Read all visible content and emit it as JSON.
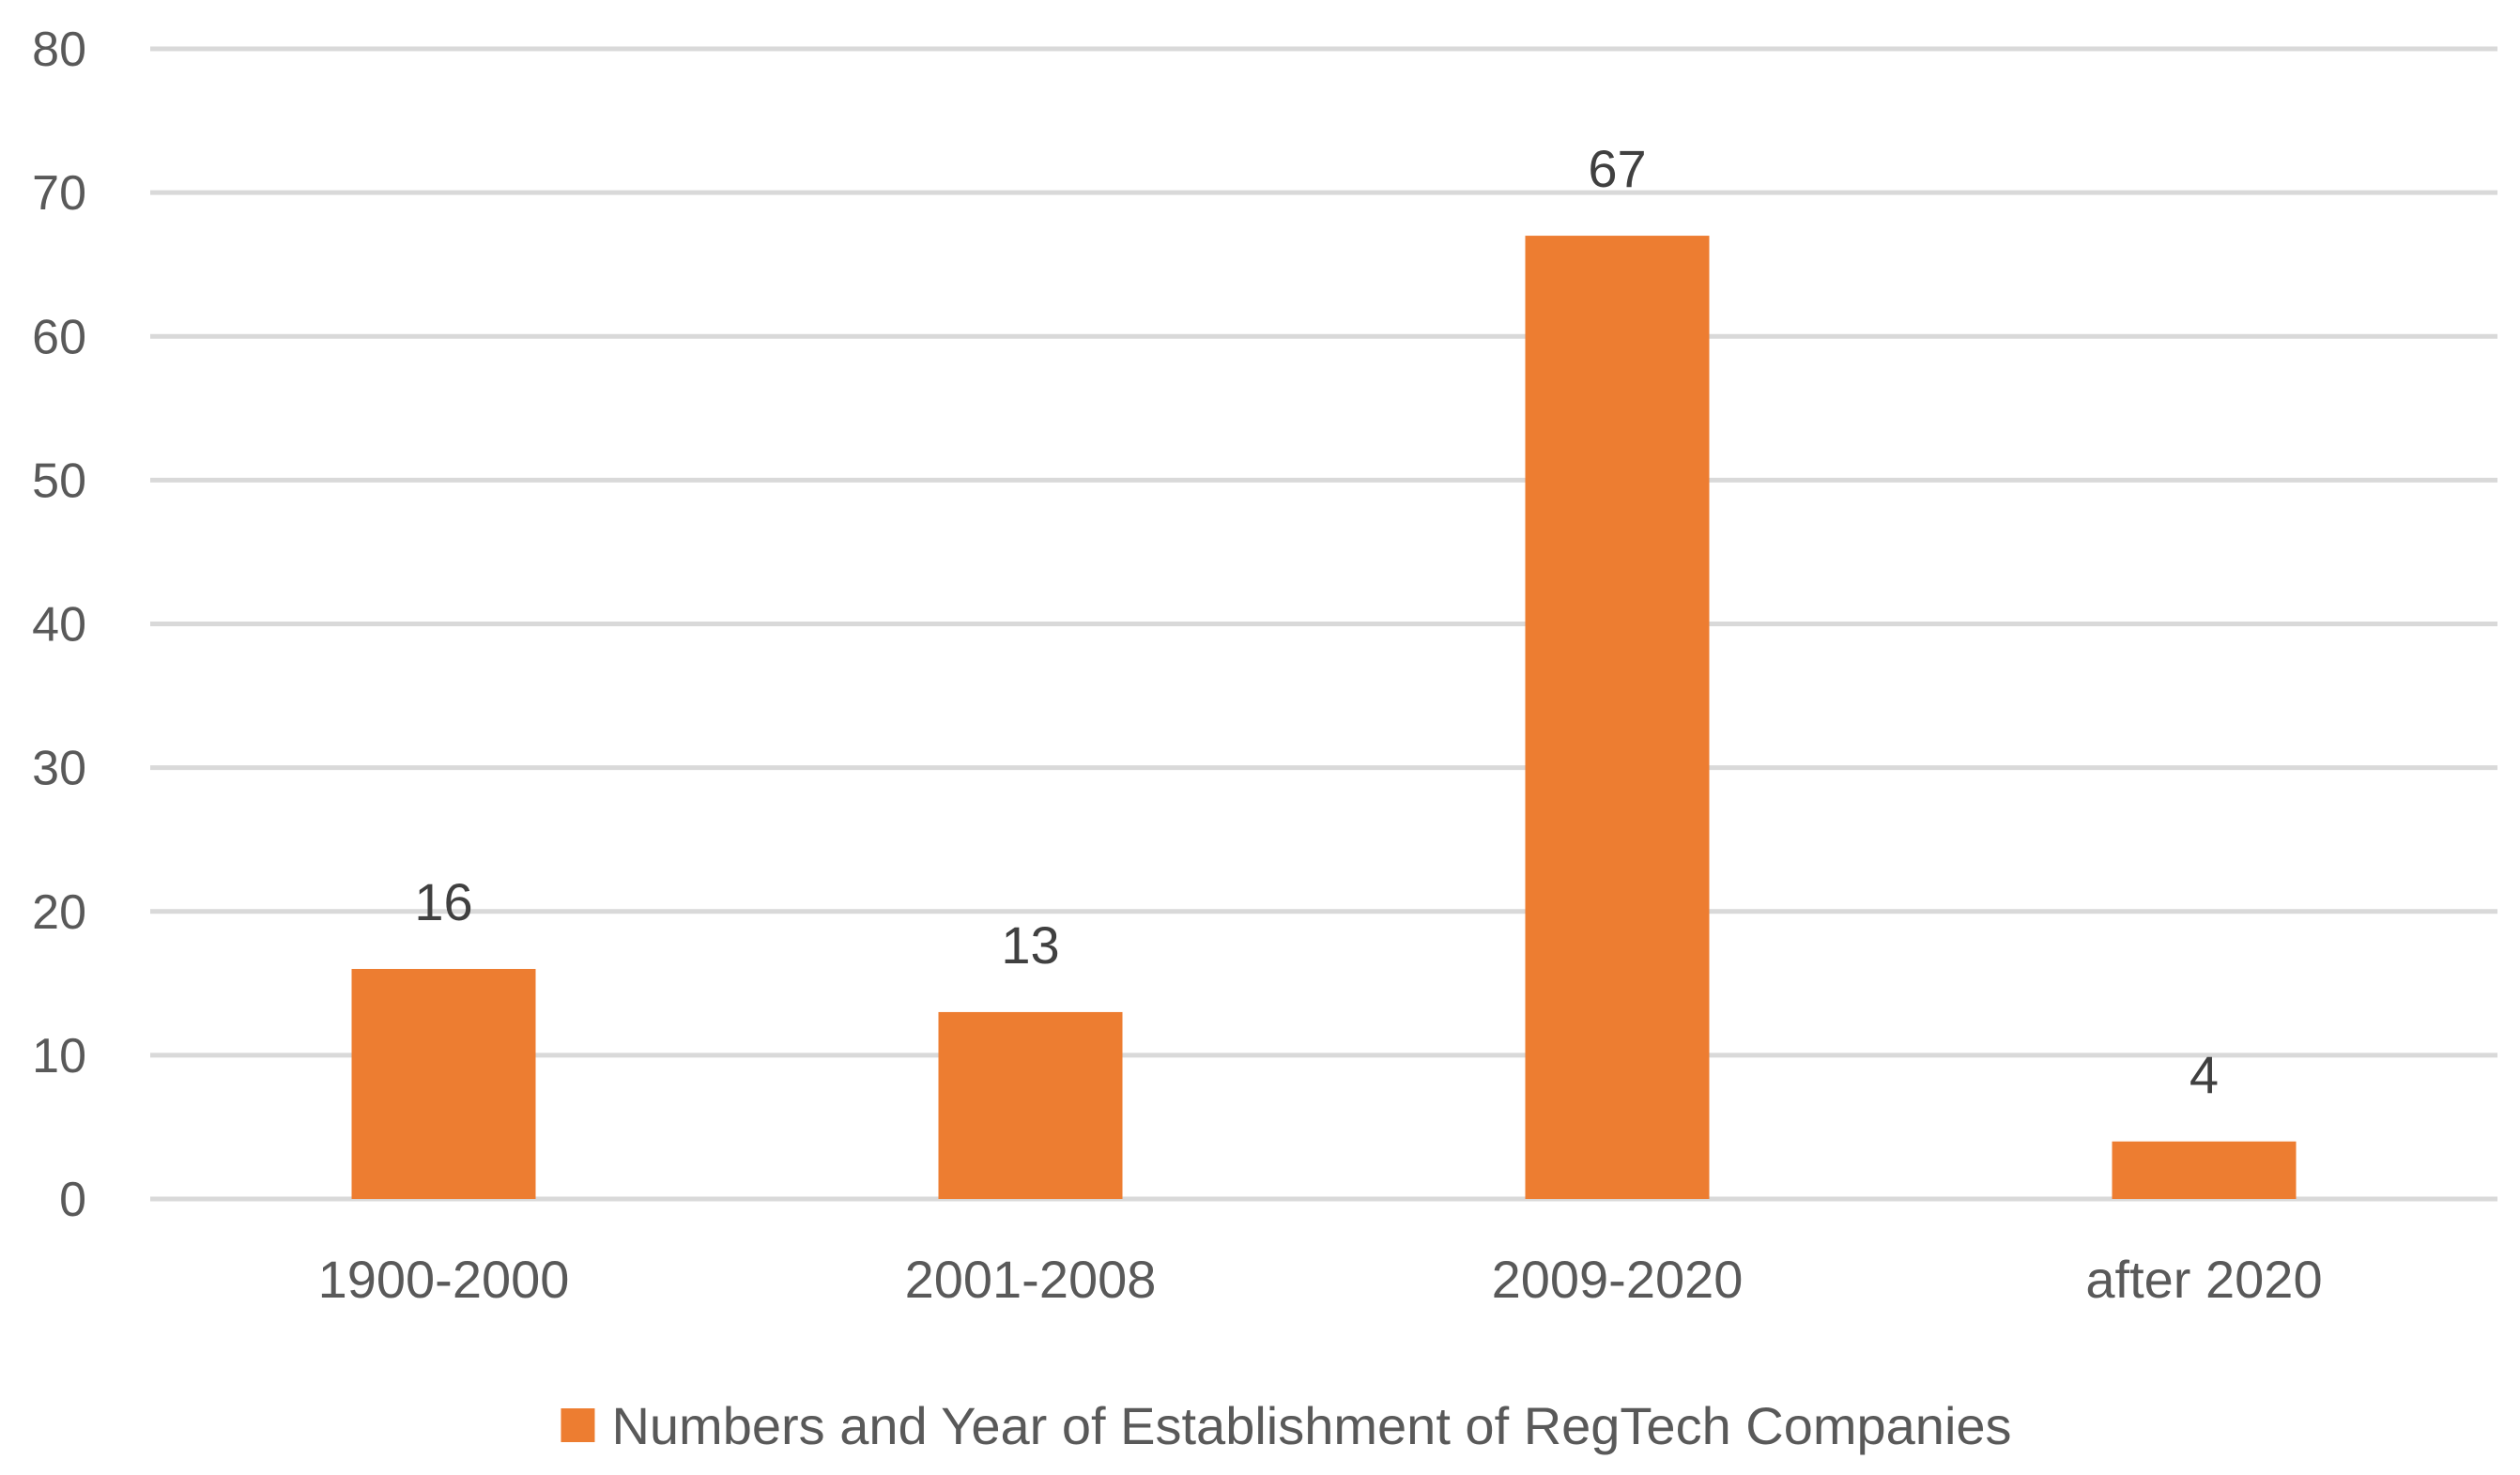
{
  "chart_data": {
    "type": "bar",
    "categories": [
      "1900-2000",
      "2001-2008",
      "2009-2020",
      "after 2020"
    ],
    "series": [
      {
        "name": "Numbers and Year of Establishment of RegTech Companies",
        "values": [
          16,
          13,
          67,
          4
        ],
        "color": "#ed7d31"
      }
    ],
    "ylim": [
      0,
      80
    ],
    "yticks": [
      0,
      10,
      20,
      30,
      40,
      50,
      60,
      70,
      80
    ],
    "data_labels": true,
    "grid": true,
    "legend_position": "bottom",
    "gridline_color": "#d9d9d9"
  }
}
